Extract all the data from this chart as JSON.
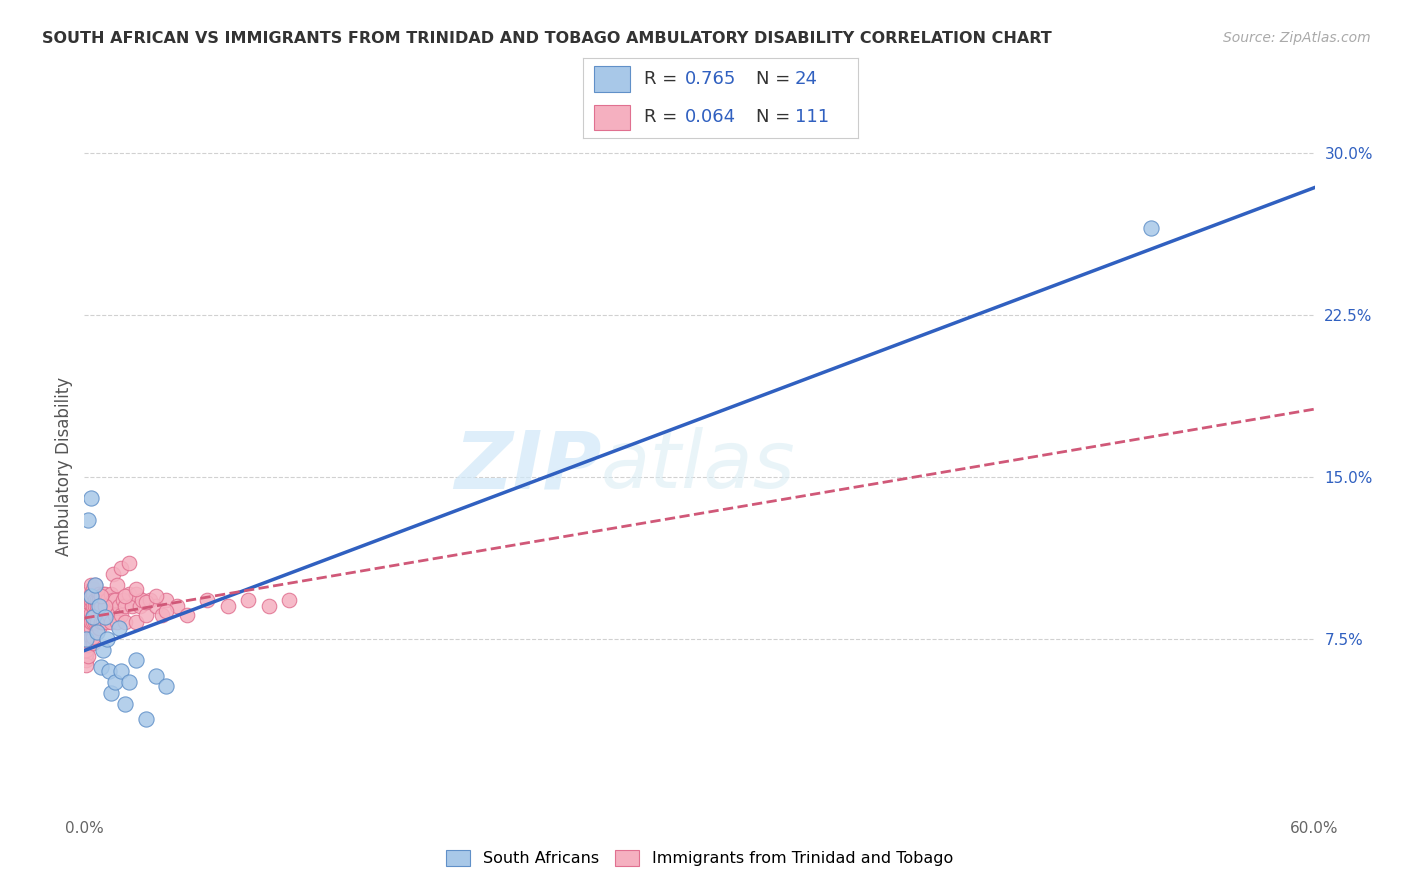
{
  "title": "SOUTH AFRICAN VS IMMIGRANTS FROM TRINIDAD AND TOBAGO AMBULATORY DISABILITY CORRELATION CHART",
  "source": "Source: ZipAtlas.com",
  "ylabel": "Ambulatory Disability",
  "xlim": [
    0.0,
    0.6
  ],
  "ylim": [
    -0.005,
    0.315
  ],
  "xticks": [
    0.0,
    0.1,
    0.2,
    0.3,
    0.4,
    0.5,
    0.6
  ],
  "xtick_labels": [
    "0.0%",
    "",
    "",
    "",
    "",
    "",
    "60.0%"
  ],
  "yticks": [
    0.075,
    0.15,
    0.225,
    0.3
  ],
  "ytick_labels": [
    "7.5%",
    "15.0%",
    "22.5%",
    "30.0%"
  ],
  "blue_R": 0.765,
  "blue_N": 24,
  "pink_R": 0.064,
  "pink_N": 111,
  "blue_dot_color": "#a8c8e8",
  "pink_dot_color": "#f5b0c0",
  "blue_edge_color": "#6090c8",
  "pink_edge_color": "#e07090",
  "blue_line_color": "#3060c0",
  "pink_line_color": "#d05878",
  "legend_blue_label": "South Africans",
  "legend_pink_label": "Immigrants from Trinidad and Tobago",
  "watermark_zip": "ZIP",
  "watermark_atlas": "atlas",
  "blue_x": [
    0.001,
    0.002,
    0.003,
    0.003,
    0.004,
    0.005,
    0.006,
    0.007,
    0.008,
    0.009,
    0.01,
    0.011,
    0.012,
    0.013,
    0.015,
    0.017,
    0.018,
    0.02,
    0.022,
    0.025,
    0.03,
    0.035,
    0.04,
    0.52
  ],
  "blue_y": [
    0.075,
    0.13,
    0.14,
    0.095,
    0.085,
    0.1,
    0.078,
    0.09,
    0.062,
    0.07,
    0.085,
    0.075,
    0.06,
    0.05,
    0.055,
    0.08,
    0.06,
    0.045,
    0.055,
    0.065,
    0.038,
    0.058,
    0.053,
    0.265
  ],
  "pink_x": [
    0.001,
    0.001,
    0.001,
    0.001,
    0.001,
    0.001,
    0.001,
    0.001,
    0.001,
    0.001,
    0.001,
    0.001,
    0.001,
    0.001,
    0.001,
    0.001,
    0.001,
    0.001,
    0.001,
    0.001,
    0.002,
    0.002,
    0.002,
    0.002,
    0.002,
    0.002,
    0.002,
    0.002,
    0.002,
    0.002,
    0.003,
    0.003,
    0.003,
    0.003,
    0.003,
    0.003,
    0.003,
    0.003,
    0.003,
    0.003,
    0.004,
    0.004,
    0.004,
    0.004,
    0.004,
    0.004,
    0.004,
    0.005,
    0.005,
    0.005,
    0.005,
    0.005,
    0.005,
    0.006,
    0.006,
    0.006,
    0.007,
    0.007,
    0.007,
    0.008,
    0.008,
    0.008,
    0.009,
    0.009,
    0.01,
    0.01,
    0.01,
    0.011,
    0.011,
    0.012,
    0.012,
    0.013,
    0.013,
    0.014,
    0.015,
    0.015,
    0.016,
    0.017,
    0.018,
    0.019,
    0.02,
    0.02,
    0.022,
    0.023,
    0.025,
    0.025,
    0.027,
    0.028,
    0.03,
    0.032,
    0.035,
    0.038,
    0.04,
    0.045,
    0.05,
    0.06,
    0.07,
    0.08,
    0.09,
    0.1,
    0.014,
    0.016,
    0.018,
    0.02,
    0.022,
    0.025,
    0.03,
    0.035,
    0.04,
    0.01,
    0.008
  ],
  "pink_y": [
    0.075,
    0.072,
    0.068,
    0.078,
    0.082,
    0.07,
    0.073,
    0.077,
    0.065,
    0.072,
    0.08,
    0.085,
    0.075,
    0.09,
    0.083,
    0.076,
    0.068,
    0.088,
    0.063,
    0.07,
    0.082,
    0.09,
    0.078,
    0.097,
    0.087,
    0.08,
    0.072,
    0.092,
    0.067,
    0.074,
    0.087,
    0.094,
    0.083,
    0.091,
    0.076,
    0.1,
    0.08,
    0.096,
    0.083,
    0.093,
    0.098,
    0.086,
    0.073,
    0.09,
    0.083,
    0.076,
    0.096,
    0.086,
    0.093,
    0.083,
    0.09,
    0.1,
    0.086,
    0.093,
    0.09,
    0.083,
    0.096,
    0.08,
    0.093,
    0.083,
    0.093,
    0.09,
    0.083,
    0.096,
    0.086,
    0.093,
    0.096,
    0.083,
    0.093,
    0.086,
    0.09,
    0.096,
    0.083,
    0.093,
    0.086,
    0.093,
    0.083,
    0.09,
    0.086,
    0.093,
    0.09,
    0.083,
    0.096,
    0.09,
    0.083,
    0.096,
    0.09,
    0.093,
    0.086,
    0.093,
    0.09,
    0.086,
    0.093,
    0.09,
    0.086,
    0.093,
    0.09,
    0.093,
    0.09,
    0.093,
    0.105,
    0.1,
    0.108,
    0.095,
    0.11,
    0.098,
    0.092,
    0.095,
    0.088,
    0.09,
    0.095
  ]
}
